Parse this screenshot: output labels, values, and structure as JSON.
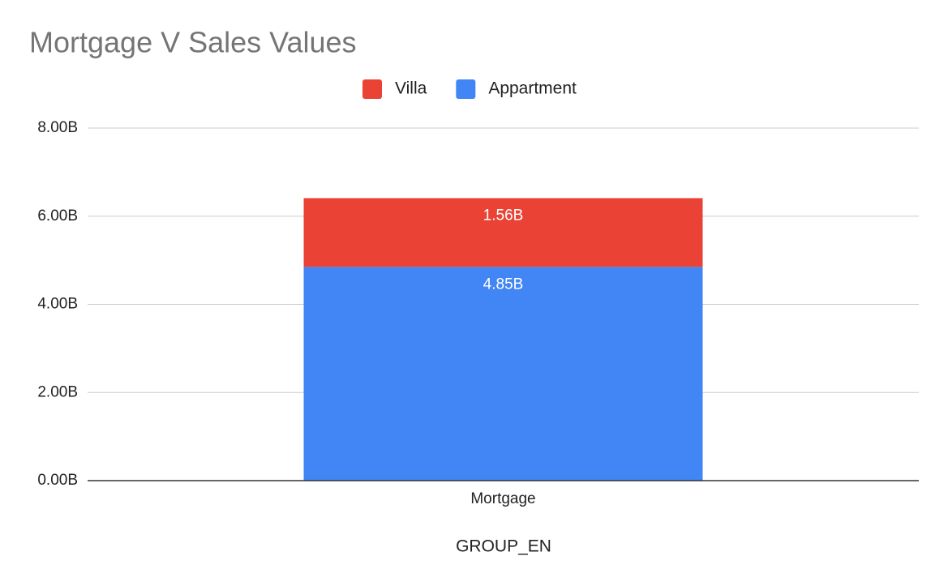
{
  "chart_data": {
    "type": "stacked_bar",
    "title": "Mortgage V Sales Values",
    "x_label": "GROUP_EN",
    "categories": [
      "Mortgage"
    ],
    "series": [
      {
        "name": "Villa",
        "color": "#ea4335",
        "values": [
          1.56
        ],
        "value_labels": [
          "1.56B"
        ]
      },
      {
        "name": "Appartment",
        "color": "#4285f4",
        "values": [
          4.85
        ],
        "value_labels": [
          "4.85B"
        ]
      }
    ],
    "ylim": [
      0,
      8
    ],
    "yticks": [
      {
        "value": 0,
        "label": "0.00B"
      },
      {
        "value": 2,
        "label": "2.00B"
      },
      {
        "value": 4,
        "label": "4.00B"
      },
      {
        "value": 6,
        "label": "6.00B"
      },
      {
        "value": 8,
        "label": "8.00B"
      }
    ],
    "grid": true,
    "legend": "top"
  }
}
